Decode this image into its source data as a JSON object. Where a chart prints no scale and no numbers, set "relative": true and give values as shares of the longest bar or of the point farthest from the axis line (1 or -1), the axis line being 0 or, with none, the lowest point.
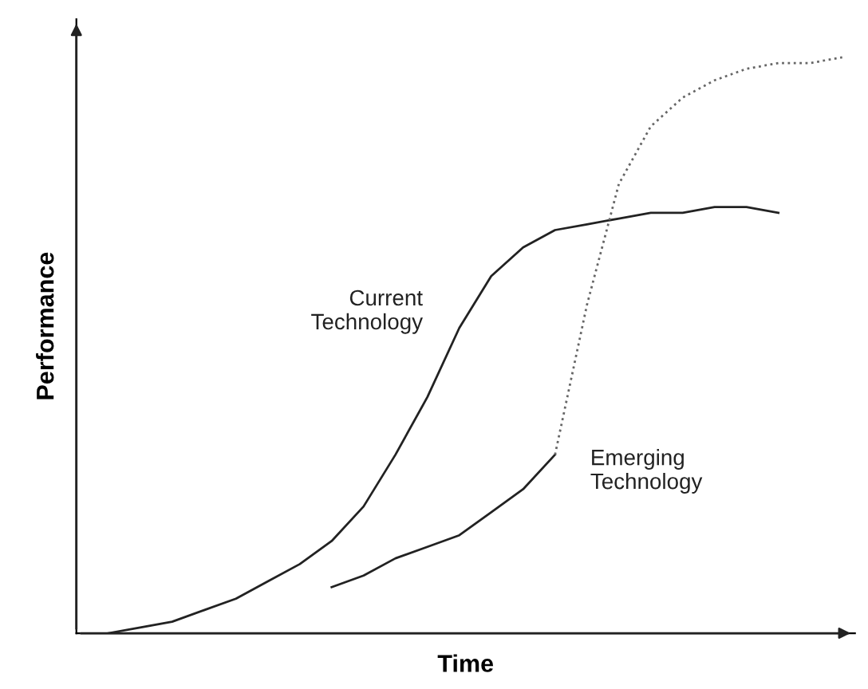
{
  "chart_data": {
    "type": "line",
    "relative": true,
    "xlabel": "Time",
    "ylabel": "Performance",
    "categories": [
      null,
      null,
      null,
      null,
      null,
      null,
      null,
      null,
      null,
      null,
      null,
      null,
      null,
      null,
      null,
      null,
      null,
      null,
      null,
      null,
      null,
      null,
      null,
      null,
      null
    ],
    "series": [
      {
        "name": "Current Technology",
        "color": "#222222",
        "line_style": "solid",
        "values": [
          null,
          0,
          0.01,
          0.02,
          0.04,
          0.06,
          0.09,
          0.12,
          0.16,
          0.22,
          0.31,
          0.41,
          0.53,
          0.62,
          0.67,
          0.7,
          0.71,
          0.72,
          0.73,
          0.73,
          0.74,
          0.74,
          0.73,
          null,
          null
        ]
      },
      {
        "name": "Emerging Technology",
        "color": "#222222",
        "line_style": "solid",
        "values": [
          null,
          null,
          null,
          null,
          null,
          null,
          null,
          null,
          0.08,
          0.1,
          0.13,
          0.15,
          0.17,
          0.21,
          0.25,
          0.31,
          null,
          null,
          null,
          null,
          null,
          null,
          null,
          null,
          null
        ]
      },
      {
        "color": "#666666",
        "line_style": "dotted",
        "values": [
          null,
          null,
          null,
          null,
          null,
          null,
          null,
          null,
          null,
          null,
          null,
          null,
          null,
          null,
          null,
          0.31,
          0.57,
          0.78,
          0.88,
          0.93,
          0.96,
          0.98,
          0.99,
          0.99,
          1
        ]
      }
    ],
    "grid": false,
    "legend": false,
    "tick_labels": false,
    "marker": "none"
  }
}
